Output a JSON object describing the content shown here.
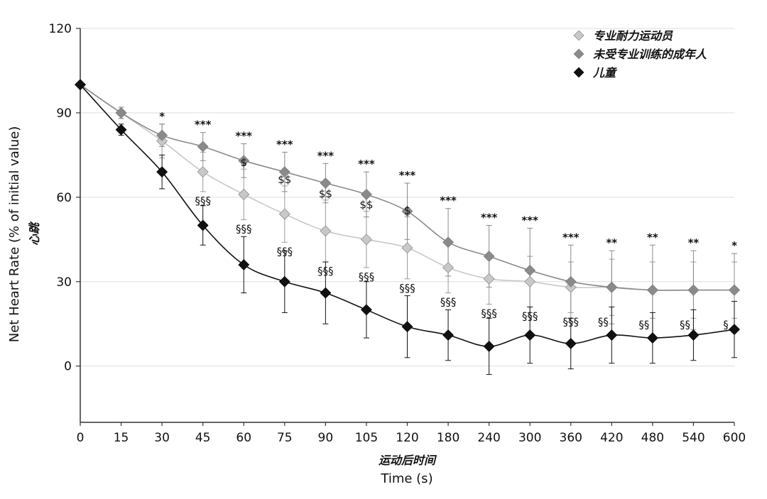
{
  "chart_data": {
    "type": "line",
    "x_categories": [
      "0",
      "15",
      "30",
      "45",
      "60",
      "75",
      "90",
      "105",
      "120",
      "180",
      "240",
      "300",
      "360",
      "420",
      "480",
      "540",
      "600"
    ],
    "ylim": [
      -20,
      120
    ],
    "yticks": [
      "0",
      "30",
      "60",
      "90",
      "120"
    ],
    "ylabel": "Net Heart Rate  (% of initial value)",
    "ylabel_cn": "心跳",
    "xlabel": "Time (s)",
    "xlabel_cn": "运动后时间",
    "series": [
      {
        "name": "专业耐力运动员",
        "color": "#c8c8c8",
        "values": [
          100,
          90,
          80,
          69,
          61,
          54,
          48,
          45,
          42,
          35,
          31,
          30,
          28,
          28,
          27,
          27,
          27
        ],
        "err": [
          0,
          2,
          6,
          7,
          9,
          10,
          11,
          10,
          11,
          9,
          9,
          9,
          9,
          10,
          10,
          10,
          10
        ]
      },
      {
        "name": "未受专业训练的成年人",
        "color": "#8a8a8a",
        "values": [
          100,
          90,
          82,
          78,
          73,
          69,
          65,
          61,
          55,
          44,
          39,
          34,
          30,
          28,
          27,
          27,
          27
        ],
        "err": [
          0,
          2,
          4,
          5,
          6,
          7,
          7,
          8,
          10,
          12,
          11,
          15,
          13,
          13,
          16,
          14,
          13
        ]
      },
      {
        "name": "儿童",
        "color": "#111111",
        "values": [
          100,
          84,
          69,
          50,
          36,
          30,
          26,
          20,
          14,
          11,
          7,
          11,
          8,
          11,
          10,
          11,
          13
        ],
        "err": [
          0,
          2,
          6,
          7,
          10,
          11,
          11,
          10,
          11,
          9,
          10,
          10,
          9,
          10,
          9,
          9,
          10
        ]
      }
    ],
    "annotations_star": [
      "",
      "",
      "*",
      "***",
      "***",
      "***",
      "***",
      "***",
      "***",
      "***",
      "***",
      "***",
      "***",
      "**",
      "**",
      "**",
      "*"
    ],
    "annotations_dollar": [
      "",
      "",
      "",
      "",
      "$",
      "$$",
      "$$",
      "$$",
      "$",
      "",
      "",
      "",
      "",
      "",
      "",
      "",
      ""
    ],
    "annotations_section": [
      "",
      "",
      "",
      "§§§",
      "§§§",
      "§§§",
      "§§§",
      "§§§",
      "§§§",
      "§§§",
      "§§§",
      "§§§",
      "§§§",
      "§§",
      "§§",
      "§§",
      "§"
    ]
  }
}
